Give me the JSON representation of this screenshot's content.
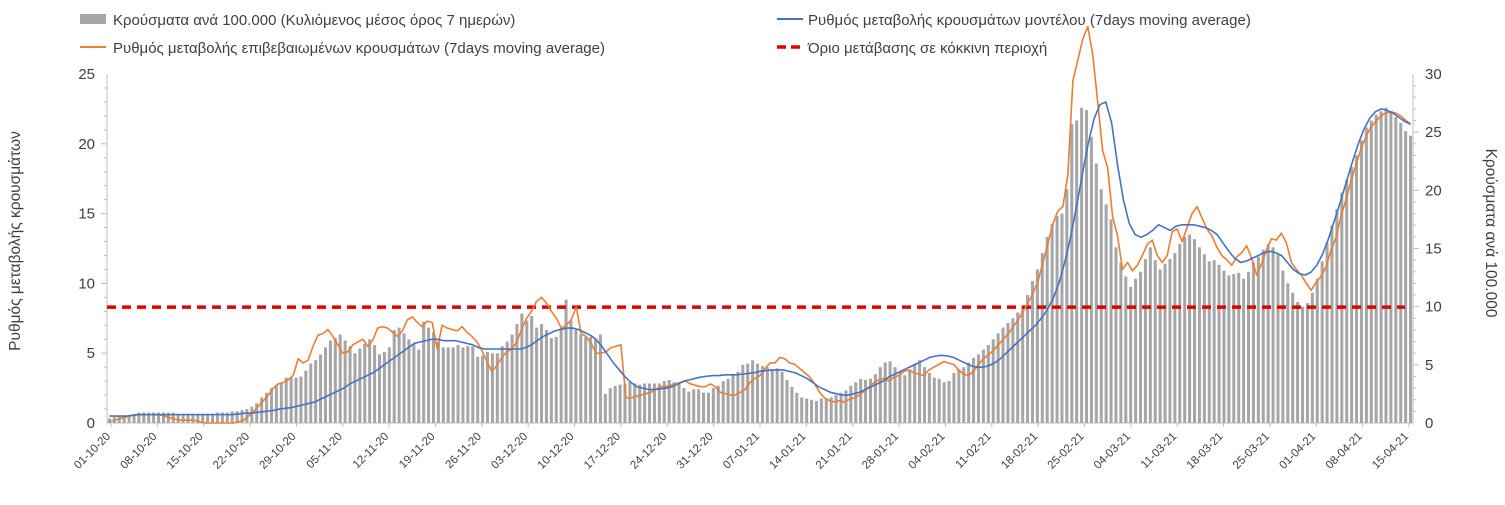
{
  "chart_data": {
    "type": "bar+line",
    "legend": [
      {
        "label": "Κρούσματα ανά 100.000 (Κυλιόμενος μέσος όρος 7 ημερών)",
        "kind": "bar",
        "color": "#a6a6a6"
      },
      {
        "label": "Ρυθμός μεταβολής κρουσμάτων μοντέλου (7days moving average)",
        "kind": "line",
        "color": "#4472c4"
      },
      {
        "label": "Ρυθμός μεταβολής επιβεβαιωμένων κρουσμάτων (7days moving average)",
        "kind": "line",
        "color": "#ed7d31"
      },
      {
        "label": "Όριο μετάβασης σε κόκκινη περιοχή",
        "kind": "dashed",
        "color": "#e00000"
      }
    ],
    "ylabel_left": "Ρυθμός μεταβολής κρουσμάτων",
    "ylabel_right": "Κρούσματα ανά 100.000",
    "ylim_left": [
      0,
      25
    ],
    "ylim_right": [
      0,
      30
    ],
    "yticks_left": [
      "0",
      "5",
      "10",
      "15",
      "20",
      "25"
    ],
    "yticks_right": [
      "0",
      "5",
      "10",
      "15",
      "20",
      "25",
      "30"
    ],
    "x_start": "01-10-20",
    "x_end": "15-04-21",
    "x_tick_labels": [
      "01-10-20",
      "08-10-20",
      "15-10-20",
      "22-10-20",
      "29-10-20",
      "05-11-20",
      "12-11-20",
      "19-11-20",
      "26-11-20",
      "03-12-20",
      "10-12-20",
      "17-12-20",
      "24-12-20",
      "31-12-20",
      "07-01-21",
      "14-01-21",
      "21-01-21",
      "28-01-21",
      "04-02-21",
      "11-02-21",
      "18-02-21",
      "25-02-21",
      "04-03-21",
      "11-03-21",
      "18-03-21",
      "25-03-21",
      "01-04-21",
      "08-04-21",
      "15-04-21"
    ],
    "red_threshold_left": 8.3,
    "series": [
      {
        "name": "Κρούσματα ανά 100.000 (Κυλιόμενος μέσος όρος 7 ημερών)",
        "axis": "right",
        "type": "bar",
        "values": [
          0.4,
          0.5,
          0.6,
          0.6,
          0.7,
          0.7,
          0.9,
          0.9,
          0.9,
          0.9,
          0.9,
          0.9,
          0.9,
          0.9,
          0.8,
          0.8,
          0.8,
          0.8,
          0.8,
          0.8,
          0.8,
          0.8,
          0.9,
          0.9,
          0.9,
          1.0,
          1.0,
          1.1,
          1.2,
          1.4,
          1.7,
          2.2,
          2.6,
          3.0,
          3.2,
          3.4,
          3.9,
          3.9,
          3.9,
          4.0,
          4.5,
          5.1,
          5.4,
          5.9,
          6.5,
          7.1,
          7.3,
          7.6,
          7.1,
          6.6,
          6.0,
          6.4,
          6.8,
          7.2,
          6.7,
          5.9,
          6.1,
          6.5,
          8.0,
          8.2,
          7.7,
          7.2,
          6.8,
          6.3,
          8.7,
          8.2,
          7.8,
          7.0,
          6.5,
          6.5,
          6.5,
          6.7,
          6.5,
          6.6,
          6.6,
          5.7,
          5.8,
          6.1,
          6.0,
          6.0,
          6.6,
          7.0,
          7.6,
          8.5,
          9.4,
          8.8,
          9.2,
          8.2,
          8.5,
          8.0,
          7.3,
          7.4,
          8.2,
          10.6,
          8.8,
          8.0,
          7.6,
          7.4,
          7.4,
          7.2,
          7.6,
          2.5,
          3.0,
          3.2,
          3.3,
          3.4,
          3.5,
          3.4,
          3.3,
          3.4,
          3.4,
          3.4,
          3.4,
          3.6,
          3.7,
          3.5,
          3.4,
          3.0,
          2.7,
          2.9,
          2.9,
          2.6,
          2.6,
          3.0,
          3.2,
          3.6,
          3.8,
          4.2,
          4.4,
          5.0,
          5.1,
          5.4,
          5.1,
          4.9,
          4.8,
          4.6,
          4.7,
          4.4,
          3.7,
          3.1,
          2.6,
          2.2,
          2.1,
          2.0,
          1.9,
          2.1,
          2.1,
          2.2,
          2.4,
          2.6,
          2.8,
          3.2,
          3.5,
          3.8,
          3.7,
          3.8,
          4.2,
          4.8,
          5.2,
          5.3,
          4.8,
          4.4,
          4.1,
          4.6,
          5.1,
          5.4,
          4.8,
          4.3,
          3.9,
          3.8,
          3.5,
          3.6,
          4.3,
          4.6,
          4.8,
          5.2,
          5.6,
          5.9,
          6.3,
          6.7,
          7.2,
          7.7,
          8.2,
          8.6,
          9.0,
          9.5,
          10.1,
          11.0,
          12.2,
          13.2,
          14.6,
          16.0,
          17.1,
          17.8,
          18.0,
          20.1,
          25.7,
          26.0,
          27.1,
          26.9,
          24.6,
          22.3,
          20.1,
          18.8,
          17.5,
          15.1,
          13.8,
          12.6,
          11.7,
          12.4,
          13.0,
          14.1,
          15.1,
          14.0,
          13.2,
          13.7,
          14.1,
          14.6,
          15.4,
          16.0,
          16.2,
          15.8,
          15.1,
          14.5,
          13.9,
          14.0,
          13.6,
          13.1,
          12.7,
          12.8,
          12.9,
          12.4,
          13.0,
          13.8,
          14.3,
          14.9,
          15.4,
          15.1,
          14.5,
          13.1,
          12.0,
          11.2,
          10.4,
          10.0,
          10.3,
          11.2,
          12.4,
          13.9,
          15.5,
          17.0,
          18.4,
          19.8,
          20.9,
          22.0,
          23.0,
          24.3,
          25.4,
          26.0,
          26.5,
          26.8,
          27.1,
          26.7,
          26.3,
          25.8,
          25.1,
          24.7
        ]
      },
      {
        "name": "Ρυθμός μεταβολής κρουσμάτων μοντέλου (7days moving average)",
        "axis": "left",
        "type": "line",
        "color": "#4472c4",
        "values": [
          0.5,
          0.5,
          0.5,
          0.5,
          0.55,
          0.6,
          0.6,
          0.6,
          0.6,
          0.6,
          0.6,
          0.6,
          0.6,
          0.6,
          0.6,
          0.6,
          0.6,
          0.6,
          0.6,
          0.6,
          0.6,
          0.6,
          0.65,
          0.7,
          0.7,
          0.75,
          0.8,
          0.85,
          0.9,
          1.0,
          1.05,
          1.1,
          1.2,
          1.3,
          1.4,
          1.5,
          1.7,
          1.9,
          2.1,
          2.3,
          2.5,
          2.8,
          3.0,
          3.2,
          3.4,
          3.6,
          3.9,
          4.2,
          4.5,
          4.8,
          5.1,
          5.4,
          5.7,
          5.8,
          5.9,
          6.0,
          6.0,
          5.9,
          5.9,
          5.9,
          5.8,
          5.7,
          5.6,
          5.4,
          5.3,
          5.3,
          5.3,
          5.3,
          5.3,
          5.3,
          5.3,
          5.4,
          5.6,
          5.9,
          6.2,
          6.4,
          6.6,
          6.7,
          6.8,
          6.8,
          6.7,
          6.5,
          6.3,
          6.0,
          5.5,
          4.9,
          4.3,
          3.8,
          3.3,
          2.9,
          2.6,
          2.5,
          2.4,
          2.4,
          2.45,
          2.5,
          2.6,
          2.8,
          3.0,
          3.1,
          3.2,
          3.3,
          3.35,
          3.4,
          3.4,
          3.45,
          3.45,
          3.45,
          3.5,
          3.55,
          3.6,
          3.7,
          3.75,
          3.8,
          3.8,
          3.8,
          3.7,
          3.6,
          3.4,
          3.2,
          2.9,
          2.6,
          2.4,
          2.2,
          2.1,
          2.0,
          2.0,
          2.1,
          2.2,
          2.4,
          2.6,
          2.8,
          3.0,
          3.3,
          3.5,
          3.7,
          3.9,
          4.1,
          4.3,
          4.5,
          4.7,
          4.8,
          4.85,
          4.8,
          4.7,
          4.5,
          4.3,
          4.1,
          4.0,
          4.0,
          4.1,
          4.3,
          4.6,
          5.0,
          5.4,
          5.8,
          6.2,
          6.6,
          7.0,
          7.5,
          8.1,
          8.9,
          10.0,
          11.5,
          13.3,
          15.5,
          17.8,
          20.0,
          21.8,
          22.8,
          23.0,
          21.5,
          18.5,
          16.0,
          14.3,
          13.5,
          13.3,
          13.5,
          13.8,
          14.2,
          14.0,
          13.8,
          14.1,
          14.2,
          14.2,
          14.2,
          14.1,
          14.0,
          13.8,
          13.5,
          12.9,
          12.3,
          11.8,
          11.5,
          11.6,
          11.8,
          12.0,
          12.2,
          12.3,
          12.2,
          12.0,
          11.5,
          11.0,
          10.7,
          10.6,
          10.8,
          11.3,
          12.1,
          13.2,
          14.5,
          15.8,
          17.2,
          18.6,
          19.9,
          21.0,
          21.8,
          22.3,
          22.5,
          22.4,
          22.2,
          21.9,
          21.6,
          21.4
        ]
      },
      {
        "name": "Ρυθμός μεταβολής επιβεβαιωμένων κρουσμάτων (7days moving average)",
        "axis": "left",
        "type": "line",
        "color": "#ed7d31",
        "values": [
          0.1,
          0.2,
          0.3,
          0.4,
          0.5,
          0.6,
          0.6,
          0.6,
          0.6,
          0.6,
          0.6,
          0.5,
          0.4,
          0.3,
          0.2,
          0.2,
          0.2,
          0.2,
          0.1,
          0.0,
          0.0,
          0.0,
          0.0,
          0.0,
          0.0,
          0.0,
          0.1,
          0.2,
          0.5,
          0.8,
          1.2,
          1.6,
          2.0,
          2.5,
          2.8,
          2.9,
          3.1,
          3.4,
          4.6,
          4.3,
          4.5,
          5.5,
          6.3,
          6.4,
          6.7,
          6.2,
          5.6,
          5.0,
          5.1,
          5.6,
          5.8,
          6.0,
          5.5,
          5.9,
          6.8,
          6.9,
          6.8,
          6.5,
          6.2,
          6.6,
          7.4,
          7.6,
          7.2,
          6.9,
          7.3,
          7.2,
          5.3,
          7.0,
          6.8,
          6.7,
          6.6,
          6.9,
          6.5,
          6.2,
          5.8,
          5.2,
          4.4,
          3.7,
          4.1,
          4.7,
          5.1,
          5.3,
          5.8,
          6.7,
          7.5,
          8.0,
          8.7,
          9.0,
          8.6,
          8.0,
          7.5,
          6.8,
          7.0,
          7.4,
          8.3,
          6.4,
          6.2,
          5.7,
          5.0,
          5.0,
          5.1,
          5.4,
          5.5,
          5.6,
          1.8,
          1.8,
          1.9,
          2.0,
          2.1,
          2.2,
          2.4,
          2.6,
          2.6,
          2.7,
          2.8,
          2.9,
          3.0,
          2.8,
          2.7,
          2.6,
          2.6,
          2.8,
          2.6,
          2.2,
          2.1,
          2.0,
          2.0,
          2.2,
          2.4,
          2.9,
          3.2,
          3.4,
          3.9,
          4.3,
          4.3,
          4.7,
          4.6,
          4.3,
          4.2,
          3.9,
          3.6,
          3.3,
          2.8,
          2.2,
          1.8,
          1.6,
          1.5,
          1.6,
          1.5,
          1.7,
          1.8,
          2.0,
          2.3,
          2.6,
          2.9,
          3.1,
          3.2,
          3.0,
          3.3,
          3.4,
          3.7,
          3.8,
          3.6,
          3.5,
          3.4,
          3.8,
          4.0,
          4.2,
          4.4,
          4.3,
          4.2,
          3.8,
          3.5,
          3.4,
          3.7,
          4.2,
          4.6,
          4.9,
          5.2,
          5.6,
          6.0,
          6.4,
          6.9,
          7.4,
          8.0,
          8.6,
          9.3,
          10.2,
          11.5,
          12.9,
          14.3,
          15.2,
          15.5,
          17.8,
          24.5,
          26.0,
          27.5,
          28.4,
          26.4,
          23.0,
          19.5,
          18.3,
          14.8,
          13.4,
          11.0,
          11.5,
          10.9,
          11.3,
          12.0,
          12.8,
          13.1,
          12.0,
          11.5,
          12.0,
          13.7,
          13.9,
          13.0,
          14.0,
          15.0,
          15.5,
          14.7,
          13.9,
          13.4,
          12.6,
          12.0,
          11.7,
          11.3,
          11.9,
          12.2,
          12.7,
          11.8,
          10.6,
          11.4,
          12.4,
          13.2,
          13.1,
          13.6,
          12.9,
          11.5,
          11.0,
          10.6,
          10.0,
          9.5,
          10.1,
          10.5,
          11.2,
          12.4,
          13.3,
          14.8,
          16.0,
          17.3,
          18.5,
          19.6,
          20.5,
          21.2,
          21.6,
          22.0,
          22.2,
          22.3,
          22.2,
          22.0,
          21.7,
          21.4
        ]
      },
      {
        "name": "Όριο μετάβασης σε κόκκινη περιοχή",
        "axis": "left",
        "type": "line",
        "style": "dashed",
        "color": "#e00000",
        "values": [
          8.3,
          8.3
        ]
      }
    ]
  }
}
